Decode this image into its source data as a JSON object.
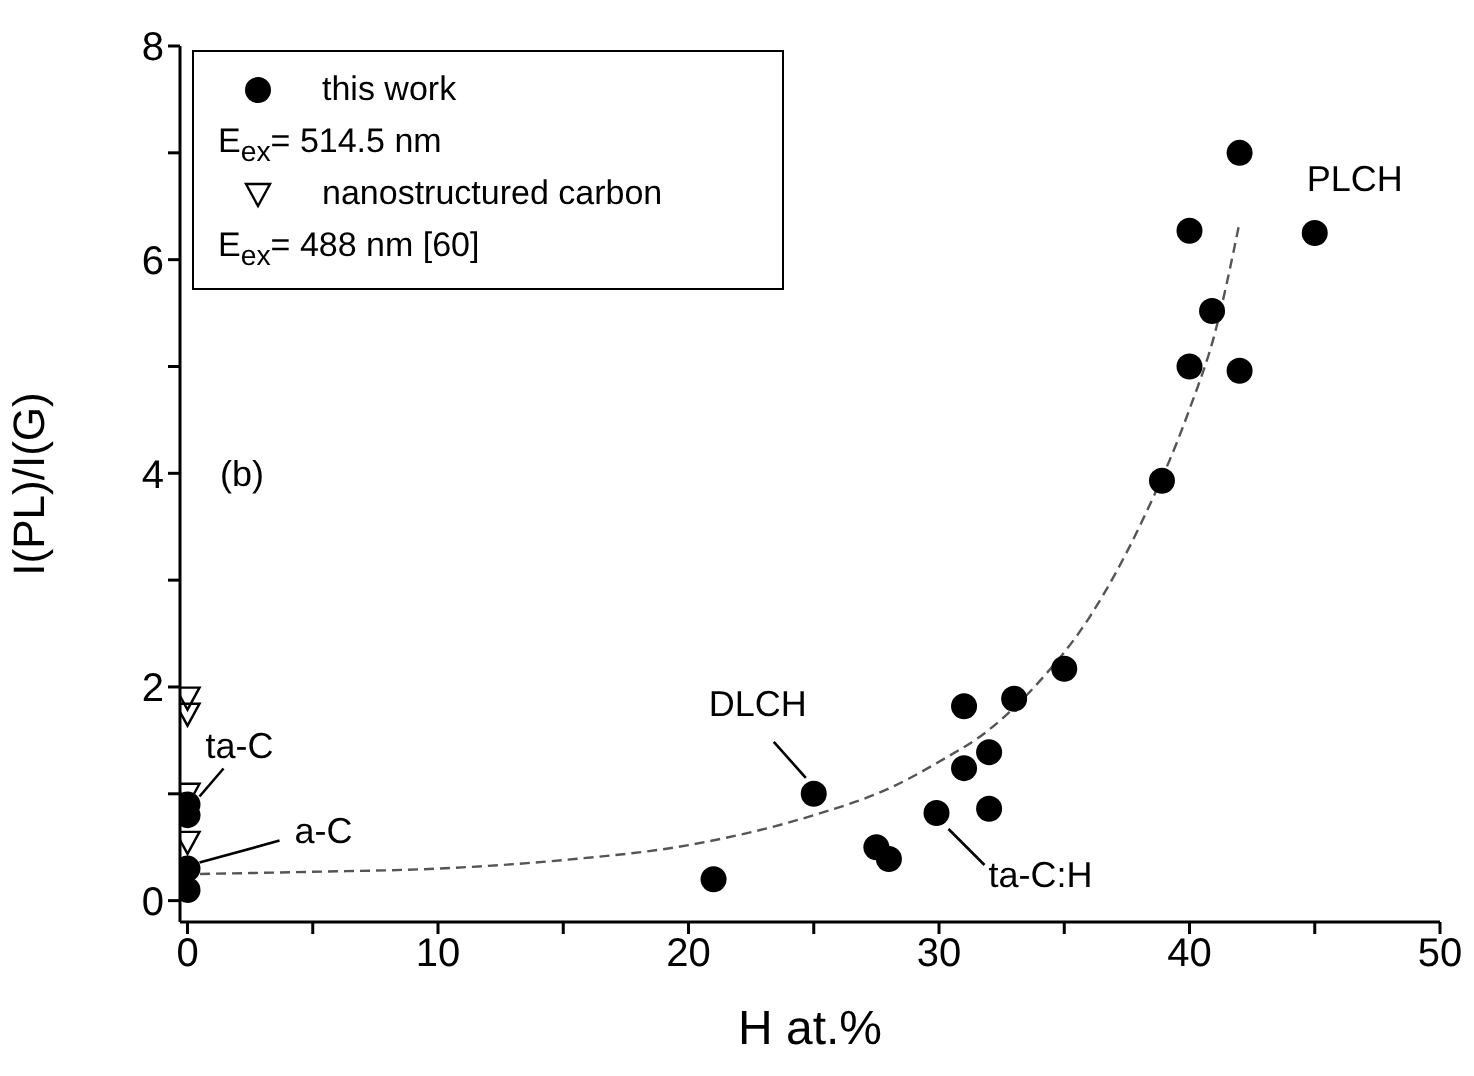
{
  "chart_data": {
    "type": "scatter",
    "xlabel": "H at.%",
    "ylabel": "I(PL)/I(G)",
    "xlim": [
      -0.3,
      50
    ],
    "xticks": [
      0,
      {
        "value": 5,
        "label": null
      },
      10,
      {
        "value": 15,
        "label": null
      },
      20,
      {
        "value": 25,
        "label": null
      },
      30,
      {
        "value": 35,
        "label": null
      },
      40,
      {
        "value": 45,
        "label": null
      },
      50
    ],
    "ylim": [
      -0.2,
      8
    ],
    "yticks": [
      0,
      {
        "value": 1,
        "label": null
      },
      2,
      {
        "value": 3,
        "label": null
      },
      4,
      {
        "value": 5,
        "label": null
      },
      6,
      {
        "value": 7,
        "label": null
      },
      8
    ],
    "grid": false,
    "legend": "top left",
    "series": [
      {
        "name": "this work",
        "marker": "circle",
        "color": "#000000",
        "x": [
          0,
          0,
          0,
          0,
          21,
          25,
          27.5,
          28,
          29.9,
          31,
          31,
          32,
          32,
          33,
          35,
          38.9,
          40,
          40,
          40.9,
          42,
          42,
          45
        ],
        "values": [
          0.1,
          0.3,
          0.8,
          0.9,
          0.2,
          1.0,
          0.5,
          0.39,
          0.82,
          1.24,
          1.82,
          1.39,
          0.86,
          1.89,
          2.17,
          3.93,
          5.0,
          6.27,
          5.52,
          4.96,
          7.0,
          6.25
        ]
      },
      {
        "name": "nanostructured carbon",
        "marker": "triangle",
        "color": "#000000",
        "x": [
          0,
          0,
          0,
          0
        ],
        "values": [
          0.55,
          1.0,
          1.75,
          1.9
        ]
      },
      {
        "type": "line",
        "line_style": "dashed",
        "color": "#555555",
        "x": [
          0.5,
          5,
          10,
          15,
          20,
          25,
          28,
          30,
          32,
          34,
          36,
          38,
          40,
          41,
          42
        ],
        "values": [
          0.25,
          0.27,
          0.3,
          0.38,
          0.52,
          0.8,
          1.05,
          1.3,
          1.6,
          2.05,
          2.65,
          3.5,
          4.6,
          5.3,
          6.35
        ]
      }
    ],
    "annotations": [
      "(b)",
      "E$_{ex}$= 514.5 nm",
      "E$_{ex}$= 488 nm [60]",
      {
        "text": "PLCH",
        "x": 45,
        "y": 6.25
      },
      {
        "text": "DLCH",
        "x": 25,
        "y": 1.0
      },
      {
        "text": "ta-C:H",
        "x": 29.9,
        "y": 0.82
      },
      {
        "text": "ta-C",
        "x": 0,
        "y": 0.9
      },
      {
        "text": "a-C",
        "x": 0,
        "y": 0.3
      }
    ]
  }
}
